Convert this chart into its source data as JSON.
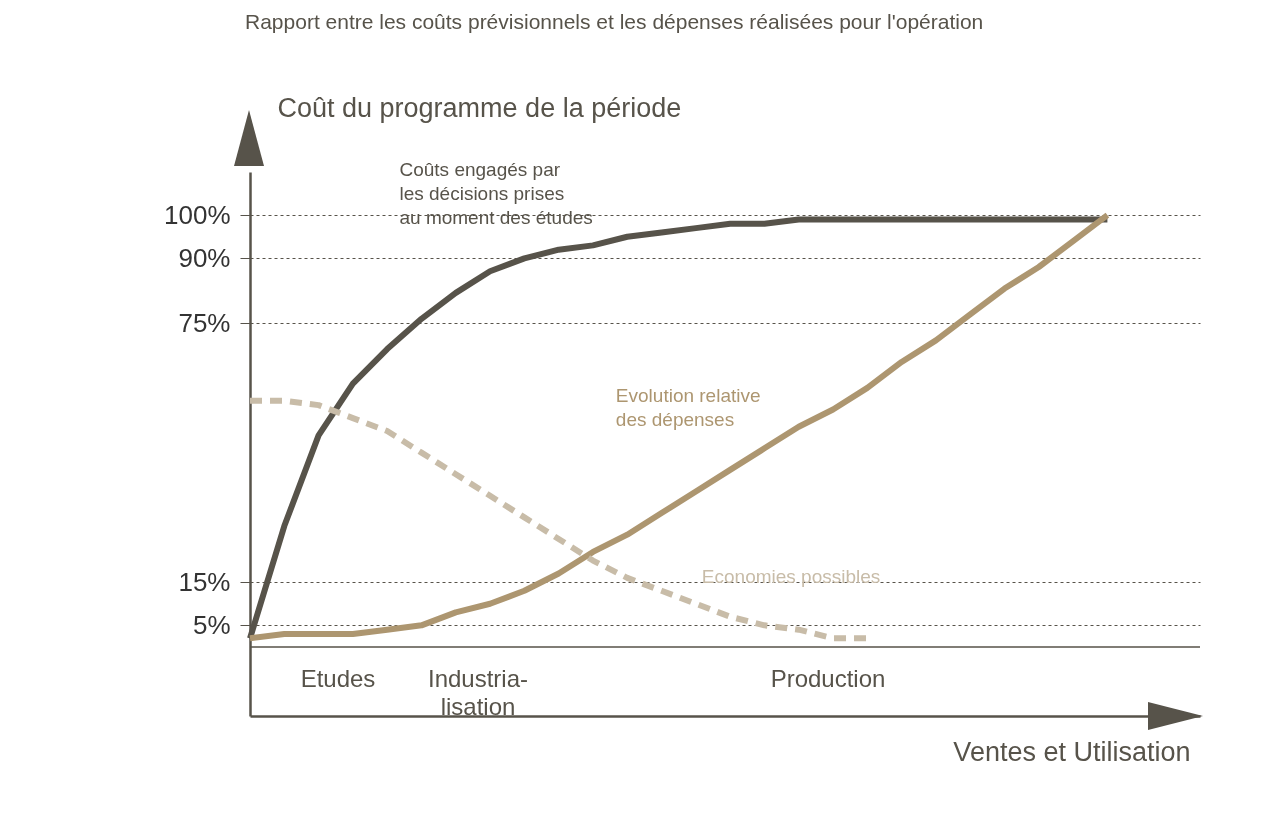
{
  "chart_data": {
    "type": "line",
    "title": "Rapport entre les coûts prévisionnels et les dépenses réalisées pour l'opération",
    "ylabel": "Coût du programme de la période",
    "xlabel": "Ventes et Utilisation",
    "categories": [
      null,
      null,
      null,
      null,
      null,
      null,
      null,
      null,
      null,
      null,
      null,
      null,
      null,
      null,
      null,
      null,
      null,
      null,
      null,
      null,
      null,
      null,
      null,
      null,
      null,
      null
    ],
    "ylim": [
      -16,
      110
    ],
    "yticks": [
      {
        "value": 5,
        "label": "5%"
      },
      {
        "value": 15,
        "label": "15%"
      },
      {
        "value": 75,
        "label": "75%"
      },
      {
        "value": 90,
        "label": "90%"
      },
      {
        "value": 100,
        "label": "100%"
      }
    ],
    "tick_labels": "y",
    "grid": "y",
    "legend": false,
    "marker": "none",
    "series": [
      {
        "name": "Coûts engagés par\nles décisions prises\nau moment des études",
        "color": "#57534a",
        "line_style": "solid",
        "values": [
          2,
          28,
          49,
          61,
          69,
          76,
          82,
          87,
          90,
          92,
          93,
          95,
          96,
          97,
          98,
          98,
          99,
          99,
          99,
          99,
          99,
          99,
          99,
          99,
          99,
          99
        ]
      },
      {
        "name": "Evolution relative\ndes dépenses",
        "color": "#ad9670",
        "line_style": "solid",
        "values": [
          2,
          3,
          3,
          3,
          4,
          5,
          8,
          10,
          13,
          17,
          22,
          26,
          31,
          36,
          41,
          46,
          51,
          55,
          60,
          66,
          71,
          77,
          83,
          88,
          94,
          100
        ]
      },
      {
        "name": "Economies possibles",
        "color": "#c8bca8",
        "line_style": "dashed",
        "values": [
          57,
          57,
          56,
          53,
          50,
          45,
          40,
          35,
          30,
          25,
          20,
          16,
          13,
          10,
          7,
          5,
          4,
          2,
          2,
          null,
          null,
          null,
          null,
          null,
          null,
          null
        ]
      }
    ],
    "ref_lines": [
      {
        "axis": "y",
        "value": 0
      }
    ],
    "annotations": [
      "Etudes",
      "Industria-\nlisation",
      "Production"
    ]
  }
}
